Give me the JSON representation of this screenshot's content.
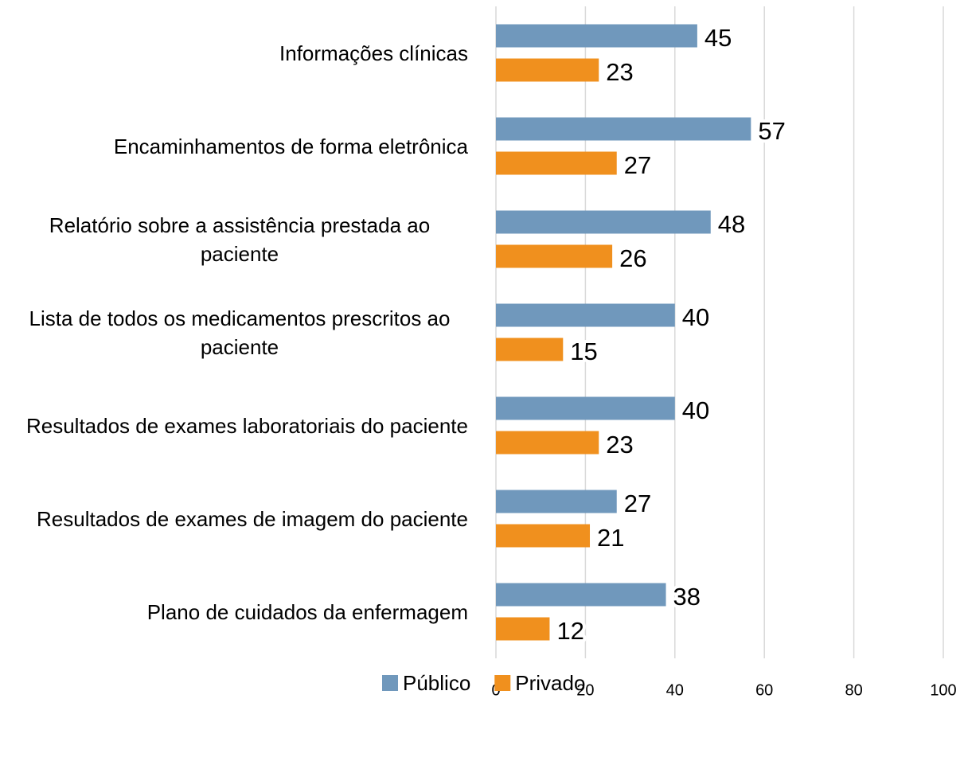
{
  "chart_data": {
    "type": "bar",
    "orientation": "horizontal",
    "categories": [
      "Informações clínicas",
      "Encaminhamentos de forma eletrônica",
      "Relatório sobre a assistência prestada ao paciente",
      "Lista de todos os medicamentos prescritos ao paciente",
      "Resultados de exames laboratoriais do paciente",
      "Resultados de exames de imagem do paciente",
      "Plano de cuidados da enfermagem"
    ],
    "series": [
      {
        "name": "Público",
        "color": "#7098bc",
        "values": [
          45,
          57,
          48,
          40,
          40,
          27,
          38
        ]
      },
      {
        "name": "Privado",
        "color": "#f0901e",
        "values": [
          23,
          27,
          26,
          15,
          23,
          21,
          12
        ]
      }
    ],
    "xlim": [
      0,
      100
    ],
    "xticks": [
      0,
      20,
      40,
      60,
      80,
      100
    ],
    "grid": true,
    "legend": "bottom"
  }
}
